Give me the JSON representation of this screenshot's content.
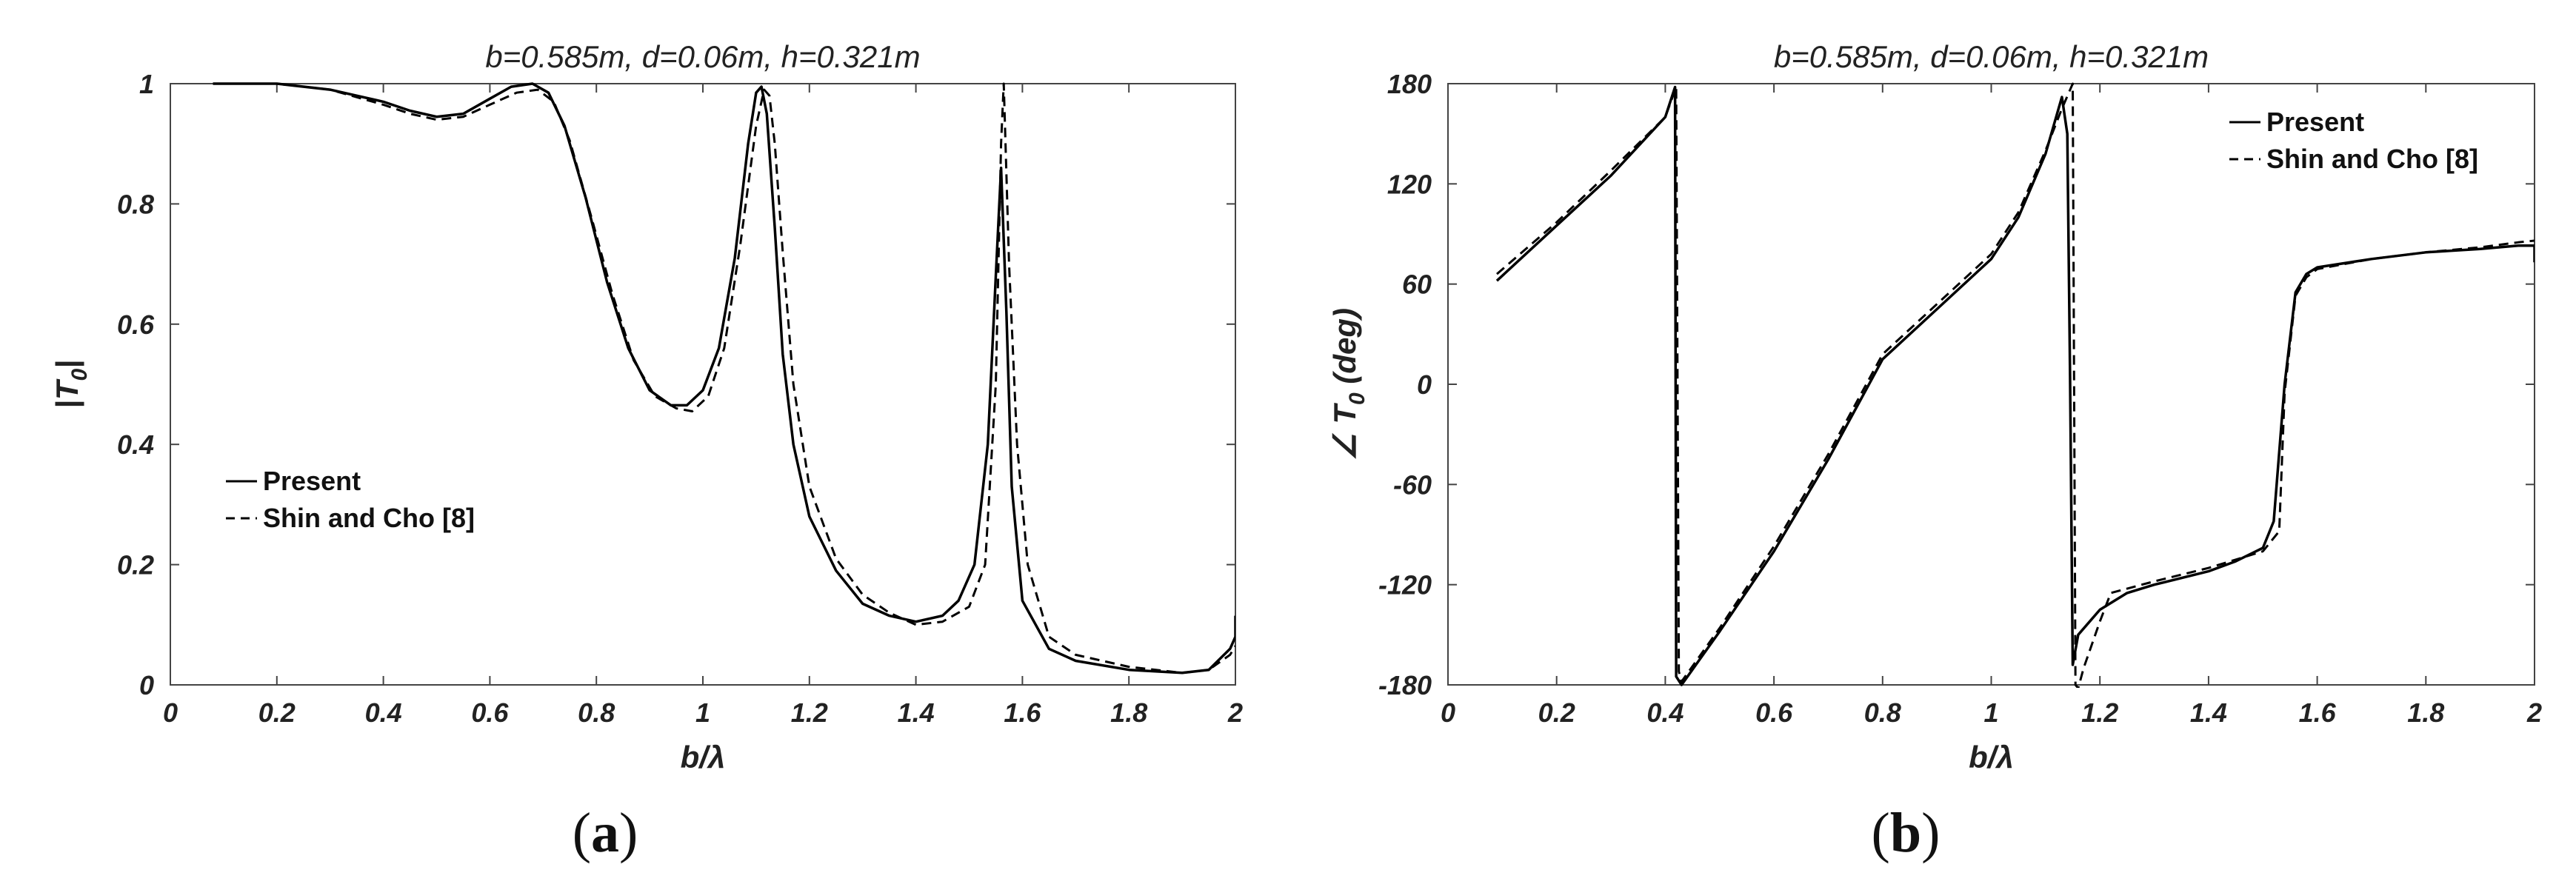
{
  "chart_data": [
    {
      "type": "line",
      "panel_label": "a",
      "title": "b=0.585m, d=0.06m, h=0.321m",
      "xlabel": "b/λ",
      "ylabel_main": "|T",
      "ylabel_sub": "0",
      "ylabel_end": "|",
      "xlim": [
        0,
        2
      ],
      "ylim": [
        0,
        1
      ],
      "xticks": [
        "0",
        "0.2",
        "0.4",
        "0.6",
        "0.8",
        "1",
        "1.2",
        "1.4",
        "1.6",
        "1.8",
        "2"
      ],
      "yticks": [
        "0",
        "0.2",
        "0.4",
        "0.6",
        "0.8",
        "1"
      ],
      "grid": false,
      "legend_position": "middle-left",
      "series": [
        {
          "name": "Present",
          "style": "solid",
          "x": [
            0.08,
            0.2,
            0.3,
            0.4,
            0.45,
            0.5,
            0.55,
            0.6,
            0.64,
            0.68,
            0.71,
            0.74,
            0.78,
            0.82,
            0.86,
            0.9,
            0.94,
            0.97,
            1.0,
            1.03,
            1.06,
            1.085,
            1.1,
            1.11,
            1.12,
            1.135,
            1.15,
            1.17,
            1.2,
            1.25,
            1.3,
            1.35,
            1.4,
            1.45,
            1.48,
            1.51,
            1.535,
            1.55,
            1.56,
            1.57,
            1.58,
            1.6,
            1.65,
            1.7,
            1.8,
            1.9,
            1.95,
            1.99,
            2.0,
            2.0
          ],
          "y": [
            1.0,
            1.0,
            0.99,
            0.97,
            0.955,
            0.945,
            0.95,
            0.975,
            0.995,
            1.0,
            0.985,
            0.93,
            0.81,
            0.67,
            0.56,
            0.49,
            0.465,
            0.465,
            0.49,
            0.56,
            0.71,
            0.9,
            0.985,
            0.995,
            0.95,
            0.76,
            0.55,
            0.4,
            0.28,
            0.19,
            0.135,
            0.115,
            0.105,
            0.115,
            0.14,
            0.2,
            0.4,
            0.68,
            0.86,
            0.62,
            0.33,
            0.14,
            0.06,
            0.04,
            0.025,
            0.02,
            0.025,
            0.06,
            0.08,
            0.115
          ]
        },
        {
          "name": "Shin and Cho [8]",
          "style": "dashed",
          "x": [
            0.08,
            0.2,
            0.3,
            0.4,
            0.45,
            0.5,
            0.55,
            0.6,
            0.65,
            0.69,
            0.72,
            0.75,
            0.79,
            0.83,
            0.87,
            0.91,
            0.95,
            0.98,
            1.01,
            1.04,
            1.07,
            1.1,
            1.115,
            1.125,
            1.135,
            1.15,
            1.17,
            1.2,
            1.25,
            1.3,
            1.35,
            1.4,
            1.45,
            1.5,
            1.53,
            1.55,
            1.56,
            1.565,
            1.575,
            1.59,
            1.61,
            1.65,
            1.7,
            1.8,
            1.9,
            1.95,
            1.99,
            2.0
          ],
          "y": [
            1.0,
            1.0,
            0.99,
            0.965,
            0.95,
            0.94,
            0.945,
            0.965,
            0.985,
            0.99,
            0.97,
            0.905,
            0.78,
            0.65,
            0.54,
            0.48,
            0.46,
            0.455,
            0.48,
            0.56,
            0.73,
            0.93,
            0.99,
            0.98,
            0.9,
            0.72,
            0.5,
            0.33,
            0.21,
            0.15,
            0.12,
            0.1,
            0.105,
            0.13,
            0.2,
            0.5,
            0.9,
            1.0,
            0.7,
            0.4,
            0.2,
            0.08,
            0.05,
            0.03,
            0.02,
            0.025,
            0.05,
            0.065
          ]
        }
      ]
    },
    {
      "type": "line",
      "panel_label": "b",
      "title": "b=0.585m, d=0.06m, h=0.321m",
      "xlabel": "b/λ",
      "ylabel_main": "∠ T",
      "ylabel_sub": "0",
      "ylabel_end": " (deg)",
      "xlim": [
        0,
        2
      ],
      "ylim": [
        -180,
        180
      ],
      "xticks": [
        "0",
        "0.2",
        "0.4",
        "0.6",
        "0.8",
        "1",
        "1.2",
        "1.4",
        "1.6",
        "1.8",
        "2"
      ],
      "yticks": [
        "-180",
        "-120",
        "-60",
        "0",
        "60",
        "120",
        "180"
      ],
      "grid": false,
      "legend_position": "top-right",
      "series": [
        {
          "name": "Present",
          "style": "solid",
          "x": [
            0.09,
            0.2,
            0.3,
            0.4,
            0.418,
            0.42,
            0.43,
            0.5,
            0.6,
            0.7,
            0.8,
            0.9,
            1.0,
            1.05,
            1.1,
            1.13,
            1.14,
            1.145,
            1.15,
            1.16,
            1.2,
            1.25,
            1.3,
            1.4,
            1.45,
            1.5,
            1.52,
            1.54,
            1.56,
            1.58,
            1.6,
            1.7,
            1.8,
            1.9,
            1.97,
            2.0,
            2.0
          ],
          "y": [
            62,
            95,
            125,
            160,
            178,
            -175,
            -180,
            -148,
            -100,
            -45,
            15,
            45,
            75,
            100,
            138,
            172,
            150,
            5,
            -168,
            -150,
            -135,
            -125,
            -120,
            -112,
            -106,
            -98,
            -82,
            0,
            55,
            66,
            70,
            75,
            79,
            81,
            83,
            83,
            73
          ]
        },
        {
          "name": "Shin and Cho [8]",
          "style": "dashed",
          "x": [
            0.09,
            0.2,
            0.3,
            0.4,
            0.42,
            0.425,
            0.43,
            0.5,
            0.6,
            0.7,
            0.8,
            0.9,
            1.0,
            1.05,
            1.1,
            1.13,
            1.15,
            1.155,
            1.16,
            1.17,
            1.2,
            1.22,
            1.3,
            1.4,
            1.5,
            1.53,
            1.54,
            1.56,
            1.58,
            1.6,
            1.7,
            1.8,
            1.9,
            1.97,
            2.0
          ],
          "y": [
            66,
            97,
            128,
            160,
            178,
            -172,
            -178,
            -146,
            -97,
            -42,
            18,
            48,
            78,
            103,
            140,
            165,
            180,
            -180,
            -182,
            -170,
            -142,
            -125,
            -118,
            -110,
            -100,
            -88,
            -5,
            53,
            64,
            69,
            75,
            79,
            82,
            85,
            86
          ]
        }
      ]
    }
  ]
}
